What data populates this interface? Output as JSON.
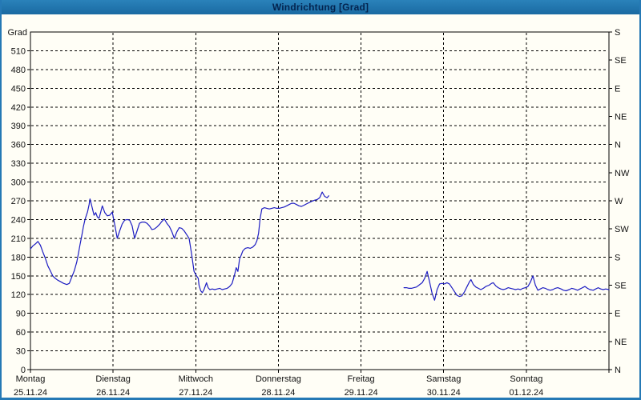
{
  "window": {
    "title": "Windrichtung [Grad]"
  },
  "colors": {
    "titlebar_bg": "#1e6fa8",
    "titlebar_text": "#03234e",
    "window_border": "#2579b5",
    "background": "#fffef6",
    "axis": "#000000",
    "grid": "#000000",
    "tick_text": "#111111",
    "line": "#1d1dc2"
  },
  "chart_data": {
    "type": "line",
    "title": "Windrichtung [Grad]",
    "y_left_label": "Grad",
    "ylim": [
      0,
      540
    ],
    "y_left_ticks": [
      0,
      30,
      60,
      90,
      120,
      150,
      180,
      210,
      240,
      270,
      300,
      330,
      360,
      390,
      420,
      450,
      480,
      510
    ],
    "y_right_ticks": [
      {
        "deg": 540,
        "label": "S"
      },
      {
        "deg": 495,
        "label": "SE"
      },
      {
        "deg": 450,
        "label": "E"
      },
      {
        "deg": 405,
        "label": "NE"
      },
      {
        "deg": 360,
        "label": "N"
      },
      {
        "deg": 315,
        "label": "NW"
      },
      {
        "deg": 270,
        "label": "W"
      },
      {
        "deg": 225,
        "label": "SW"
      },
      {
        "deg": 180,
        "label": "S"
      },
      {
        "deg": 135,
        "label": "SE"
      },
      {
        "deg": 90,
        "label": "E"
      },
      {
        "deg": 45,
        "label": "NE"
      },
      {
        "deg": 0,
        "label": "N"
      }
    ],
    "xlim_days": [
      0,
      7
    ],
    "x_categories": [
      {
        "name": "Montag",
        "date": "25.11.24"
      },
      {
        "name": "Dienstag",
        "date": "26.11.24"
      },
      {
        "name": "Mittwoch",
        "date": "27.11.24"
      },
      {
        "name": "Donnerstag",
        "date": "28.11.24"
      },
      {
        "name": "Freitag",
        "date": "29.11.24"
      },
      {
        "name": "Samstag",
        "date": "30.11.24"
      },
      {
        "name": "Sonntag",
        "date": "01.12.24"
      }
    ],
    "grid": "dashed",
    "legend": "none",
    "series": [
      {
        "name": "Windrichtung",
        "unit": "Grad",
        "color": "#1d1dc2",
        "segments": [
          [
            [
              0.0,
              193
            ],
            [
              0.03,
              198
            ],
            [
              0.06,
              201
            ],
            [
              0.09,
              205
            ],
            [
              0.12,
              199
            ],
            [
              0.15,
              188
            ],
            [
              0.18,
              178
            ],
            [
              0.21,
              166
            ],
            [
              0.24,
              158
            ],
            [
              0.27,
              150
            ],
            [
              0.3,
              146
            ],
            [
              0.33,
              143
            ],
            [
              0.36,
              141
            ],
            [
              0.4,
              138
            ],
            [
              0.44,
              136
            ],
            [
              0.47,
              138
            ],
            [
              0.5,
              148
            ],
            [
              0.53,
              158
            ],
            [
              0.56,
              172
            ],
            [
              0.58,
              185
            ],
            [
              0.6,
              200
            ],
            [
              0.62,
              213
            ],
            [
              0.64,
              228
            ],
            [
              0.66,
              240
            ],
            [
              0.68,
              248
            ],
            [
              0.69,
              252
            ],
            [
              0.71,
              264
            ],
            [
              0.72,
              273
            ],
            [
              0.74,
              263
            ],
            [
              0.76,
              252
            ],
            [
              0.77,
              247
            ],
            [
              0.79,
              251
            ],
            [
              0.81,
              244
            ],
            [
              0.83,
              242
            ],
            [
              0.85,
              252
            ],
            [
              0.87,
              262
            ],
            [
              0.9,
              251
            ],
            [
              0.93,
              246
            ],
            [
              0.96,
              247
            ],
            [
              0.99,
              252
            ],
            [
              1.02,
              232
            ],
            [
              1.05,
              210
            ],
            [
              1.08,
              222
            ],
            [
              1.11,
              233
            ],
            [
              1.14,
              239
            ],
            [
              1.17,
              240
            ],
            [
              1.2,
              239
            ],
            [
              1.23,
              230
            ],
            [
              1.26,
              210
            ],
            [
              1.29,
              222
            ],
            [
              1.32,
              234
            ],
            [
              1.35,
              236
            ],
            [
              1.38,
              236
            ],
            [
              1.41,
              234
            ],
            [
              1.44,
              230
            ],
            [
              1.47,
              224
            ],
            [
              1.5,
              225
            ],
            [
              1.53,
              228
            ],
            [
              1.56,
              232
            ],
            [
              1.59,
              237
            ],
            [
              1.62,
              241
            ],
            [
              1.65,
              234
            ],
            [
              1.68,
              229
            ],
            [
              1.71,
              221
            ],
            [
              1.74,
              210
            ],
            [
              1.77,
              220
            ],
            [
              1.8,
              227
            ],
            [
              1.83,
              226
            ],
            [
              1.86,
              222
            ],
            [
              1.89,
              216
            ],
            [
              1.92,
              210
            ],
            [
              1.95,
              185
            ],
            [
              1.98,
              157
            ],
            [
              2.01,
              150
            ],
            [
              2.03,
              146
            ],
            [
              2.04,
              135
            ],
            [
              2.06,
              126
            ],
            [
              2.08,
              123
            ],
            [
              2.1,
              128
            ],
            [
              2.13,
              139
            ],
            [
              2.15,
              131
            ],
            [
              2.17,
              128
            ],
            [
              2.2,
              129
            ],
            [
              2.23,
              128
            ],
            [
              2.26,
              129
            ],
            [
              2.29,
              130
            ],
            [
              2.32,
              128
            ],
            [
              2.35,
              129
            ],
            [
              2.38,
              130
            ],
            [
              2.41,
              133
            ],
            [
              2.44,
              138
            ],
            [
              2.47,
              152
            ],
            [
              2.49,
              163
            ],
            [
              2.51,
              157
            ],
            [
              2.53,
              177
            ],
            [
              2.55,
              183
            ],
            [
              2.57,
              190
            ],
            [
              2.6,
              194
            ],
            [
              2.63,
              195
            ],
            [
              2.66,
              194
            ],
            [
              2.69,
              196
            ],
            [
              2.72,
              200
            ],
            [
              2.74,
              206
            ],
            [
              2.76,
              218
            ],
            [
              2.78,
              242
            ],
            [
              2.8,
              257
            ],
            [
              2.83,
              259
            ],
            [
              2.86,
              258
            ],
            [
              2.89,
              257
            ],
            [
              2.92,
              258
            ],
            [
              2.95,
              259
            ],
            [
              2.98,
              258
            ],
            [
              3.01,
              258
            ],
            [
              3.04,
              259
            ],
            [
              3.07,
              260
            ],
            [
              3.1,
              262
            ],
            [
              3.13,
              264
            ],
            [
              3.16,
              266
            ],
            [
              3.19,
              266
            ],
            [
              3.22,
              264
            ],
            [
              3.25,
              262
            ],
            [
              3.28,
              261
            ],
            [
              3.31,
              263
            ],
            [
              3.34,
              265
            ],
            [
              3.37,
              267
            ],
            [
              3.4,
              269
            ],
            [
              3.44,
              271
            ],
            [
              3.47,
              272
            ],
            [
              3.5,
              275
            ],
            [
              3.53,
              284
            ],
            [
              3.56,
              277
            ],
            [
              3.59,
              275
            ],
            [
              3.61,
              278
            ]
          ],
          [
            [
              4.52,
              131
            ],
            [
              4.55,
              131
            ],
            [
              4.58,
              130
            ],
            [
              4.61,
              130
            ],
            [
              4.64,
              131
            ],
            [
              4.67,
              132
            ],
            [
              4.7,
              135
            ],
            [
              4.74,
              139
            ],
            [
              4.77,
              146
            ],
            [
              4.8,
              157
            ],
            [
              4.83,
              140
            ],
            [
              4.86,
              122
            ],
            [
              4.89,
              111
            ],
            [
              4.92,
              128
            ],
            [
              4.95,
              137
            ],
            [
              4.98,
              138
            ],
            [
              5.01,
              137
            ],
            [
              5.04,
              139
            ],
            [
              5.07,
              137
            ],
            [
              5.1,
              131
            ],
            [
              5.13,
              125
            ],
            [
              5.16,
              119
            ],
            [
              5.19,
              117
            ],
            [
              5.22,
              118
            ],
            [
              5.25,
              124
            ],
            [
              5.28,
              132
            ],
            [
              5.31,
              140
            ],
            [
              5.33,
              144
            ],
            [
              5.36,
              136
            ],
            [
              5.39,
              132
            ],
            [
              5.42,
              130
            ],
            [
              5.45,
              128
            ],
            [
              5.48,
              130
            ],
            [
              5.51,
              133
            ],
            [
              5.55,
              135
            ],
            [
              5.58,
              138
            ],
            [
              5.6,
              139
            ],
            [
              5.63,
              134
            ],
            [
              5.66,
              131
            ],
            [
              5.69,
              129
            ],
            [
              5.72,
              128
            ],
            [
              5.75,
              129
            ],
            [
              5.78,
              131
            ],
            [
              5.81,
              130
            ],
            [
              5.84,
              129
            ],
            [
              5.87,
              128
            ],
            [
              5.9,
              129
            ],
            [
              5.93,
              128
            ],
            [
              5.96,
              130
            ],
            [
              5.99,
              131
            ],
            [
              6.02,
              133
            ],
            [
              6.05,
              140
            ],
            [
              6.08,
              150
            ],
            [
              6.11,
              135
            ],
            [
              6.14,
              127
            ],
            [
              6.17,
              129
            ],
            [
              6.2,
              131
            ],
            [
              6.23,
              130
            ],
            [
              6.26,
              128
            ],
            [
              6.29,
              127
            ],
            [
              6.32,
              128
            ],
            [
              6.35,
              130
            ],
            [
              6.38,
              131
            ],
            [
              6.42,
              129
            ],
            [
              6.45,
              127
            ],
            [
              6.48,
              126
            ],
            [
              6.52,
              128
            ],
            [
              6.55,
              130
            ],
            [
              6.58,
              129
            ],
            [
              6.62,
              127
            ],
            [
              6.65,
              129
            ],
            [
              6.68,
              131
            ],
            [
              6.71,
              133
            ],
            [
              6.74,
              130
            ],
            [
              6.77,
              128
            ],
            [
              6.81,
              127
            ],
            [
              6.84,
              129
            ],
            [
              6.87,
              131
            ],
            [
              6.9,
              129
            ],
            [
              6.93,
              128
            ],
            [
              6.96,
              129
            ],
            [
              7.0,
              128
            ]
          ]
        ]
      }
    ]
  }
}
